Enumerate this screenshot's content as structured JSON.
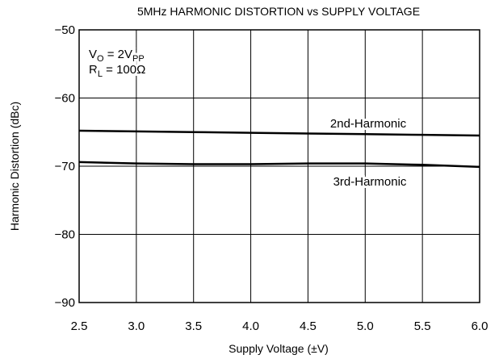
{
  "chart_data": {
    "type": "line",
    "title": "5MHz HARMONIC DISTORTION vs SUPPLY VOLTAGE",
    "x_label": "Supply Voltage (±V)",
    "y_label": "Harmonic Distortion (dBc)",
    "annotations": [
      [
        "V",
        "O",
        " = 2V",
        "PP"
      ],
      [
        "R",
        "L",
        " = 100Ω"
      ]
    ],
    "x": [
      2.5,
      3.0,
      3.5,
      4.0,
      4.5,
      5.0,
      5.5,
      6.0
    ],
    "series": [
      {
        "name": "2nd-Harmonic",
        "color": "#000000",
        "values": [
          -64.8,
          -64.9,
          -65.0,
          -65.1,
          -65.2,
          -65.3,
          -65.4,
          -65.5
        ]
      },
      {
        "name": "3rd-Harmonic",
        "color": "#000000",
        "values": [
          -69.4,
          -69.6,
          -69.7,
          -69.7,
          -69.6,
          -69.6,
          -69.8,
          -70.1
        ]
      }
    ],
    "xlim": [
      2.5,
      6.0
    ],
    "xticks": [
      2.5,
      {
        "value": 3,
        "label": "3.0"
      },
      3.5,
      {
        "value": 4,
        "label": "4.0"
      },
      4.5,
      {
        "value": 5,
        "label": "5.0"
      },
      5.5,
      {
        "value": 6,
        "label": "6.0"
      }
    ],
    "ylim": [
      -90,
      -50
    ],
    "yticks": [
      {
        "value": -90,
        "label": "−90"
      },
      {
        "value": -80,
        "label": "−80"
      },
      {
        "value": -70,
        "label": "−70"
      },
      {
        "value": -60,
        "label": "−60"
      },
      {
        "value": -50,
        "label": "−50"
      }
    ],
    "grid": true
  }
}
